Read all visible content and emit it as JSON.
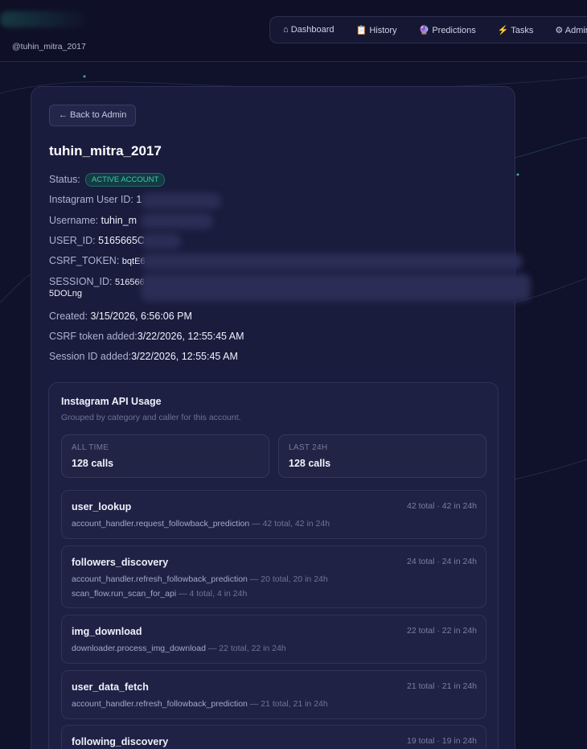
{
  "header": {
    "handle": "@tuhin_mitra_2017",
    "nav": [
      {
        "icon": "home-icon",
        "glyph": "⌂",
        "label": "Dashboard"
      },
      {
        "icon": "clipboard-icon",
        "glyph": "📋",
        "label": "History"
      },
      {
        "icon": "crystal-ball-icon",
        "glyph": "🔮",
        "label": "Predictions"
      },
      {
        "icon": "lightning-icon",
        "glyph": "⚡",
        "label": "Tasks"
      },
      {
        "icon": "gear-icon",
        "glyph": "⚙",
        "label": "Admin"
      }
    ]
  },
  "account": {
    "back_label": "← Back to Admin",
    "title": "tuhin_mitra_2017",
    "status_label": "Status:",
    "status_badge": "ACTIVE ACCOUNT",
    "ig_user_id_label": "Instagram User ID:",
    "ig_user_id": "1",
    "username_label": "Username:",
    "username": "tuhin_m",
    "user_id_label": "USER_ID:",
    "user_id": "5165665C",
    "csrf_label": "CSRF_TOKEN:",
    "csrf": "bqtE6",
    "session_label": "SESSION_ID:",
    "session": "516566",
    "session_tail": "5DOLng",
    "created_label": "Created:",
    "created": "3/15/2026, 6:56:06 PM",
    "csrf_added_label": "CSRF token added:",
    "csrf_added": "3/22/2026, 12:55:45 AM",
    "session_added_label": "Session ID added:",
    "session_added": "3/22/2026, 12:55:45 AM"
  },
  "usage": {
    "title": "Instagram API Usage",
    "subtitle": "Grouped by category and caller for this account.",
    "stats": [
      {
        "label": "ALL TIME",
        "value": "128 calls"
      },
      {
        "label": "LAST 24H",
        "value": "128 calls"
      }
    ],
    "categories": [
      {
        "name": "user_lookup",
        "totals": "42 total · 42 in 24h",
        "callers": [
          {
            "name": "account_handler.request_followback_prediction",
            "counts": " — 42 total, 42 in 24h"
          }
        ]
      },
      {
        "name": "followers_discovery",
        "totals": "24 total · 24 in 24h",
        "callers": [
          {
            "name": "account_handler.refresh_followback_prediction",
            "counts": " — 20 total, 20 in 24h"
          },
          {
            "name": "scan_flow.run_scan_for_api",
            "counts": " — 4 total, 4 in 24h"
          }
        ]
      },
      {
        "name": "img_download",
        "totals": "22 total · 22 in 24h",
        "callers": [
          {
            "name": "downloader.process_img_download",
            "counts": " — 22 total, 22 in 24h"
          }
        ]
      },
      {
        "name": "user_data_fetch",
        "totals": "21 total · 21 in 24h",
        "callers": [
          {
            "name": "account_handler.refresh_followback_prediction",
            "counts": " — 21 total, 21 in 24h"
          }
        ]
      },
      {
        "name": "following_discovery",
        "totals": "19 total · 19 in 24h",
        "callers": []
      }
    ]
  }
}
